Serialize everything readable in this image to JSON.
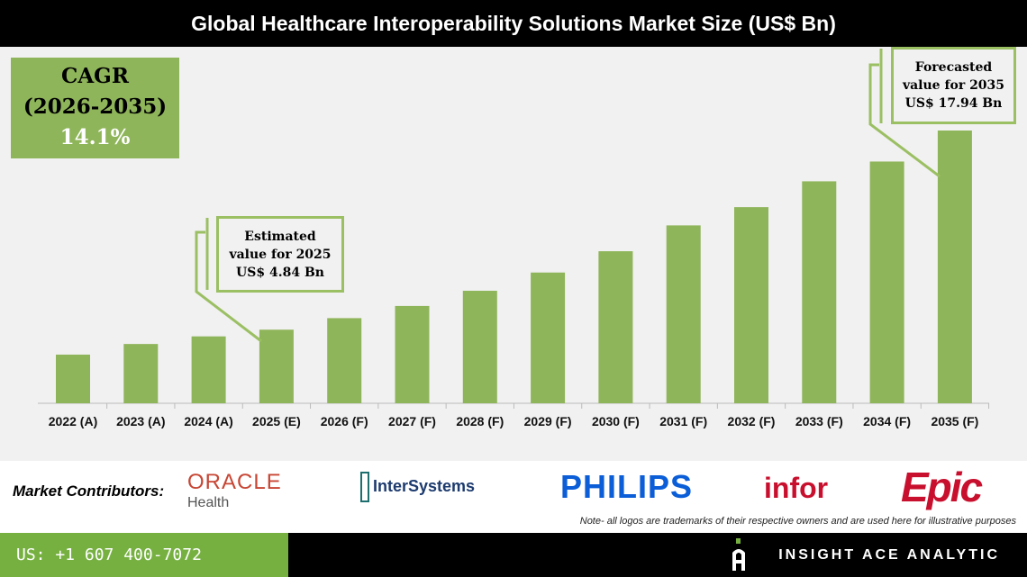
{
  "title": "Global Healthcare Interoperability Solutions Market Size (US$ Bn)",
  "cagr": {
    "label": "CAGR",
    "period": "(2026-2035)",
    "value": "14.1%"
  },
  "callouts": {
    "estimated": [
      "Estimated",
      "value for 2025",
      "US$ 4.84 Bn"
    ],
    "forecast": [
      "Forecasted",
      "value for 2035",
      "US$ 17.94 Bn"
    ]
  },
  "chart_data": {
    "type": "bar",
    "title": "Global Healthcare Interoperability Solutions Market Size (US$ Bn)",
    "categories": [
      "2022 (A)",
      "2023 (A)",
      "2024 (A)",
      "2025 (E)",
      "2026 (F)",
      "2027 (F)",
      "2028 (F)",
      "2029 (F)",
      "2030 (F)",
      "2031 (F)",
      "2032 (F)",
      "2033 (F)",
      "2034 (F)",
      "2035 (F)"
    ],
    "values": [
      3.2,
      3.9,
      4.4,
      4.84,
      5.6,
      6.4,
      7.4,
      8.6,
      10.0,
      11.7,
      12.9,
      14.6,
      15.9,
      17.94
    ],
    "ylim": [
      0,
      17.94
    ],
    "grid": false,
    "bar_color": "#8fb55a"
  },
  "contributors": {
    "label": "Market Contributors:",
    "logos": [
      {
        "name": "ORACLE",
        "sub": "Health",
        "color": "#c74634"
      },
      {
        "name": "InterSystems",
        "color": "#1d3b6e"
      },
      {
        "name": "PHILIPS",
        "color": "#0b5ed7"
      },
      {
        "name": "infor",
        "color": "#c8102e"
      },
      {
        "name": "Epic",
        "color": "#c8102e"
      }
    ],
    "note": "Note- all logos are trademarks of their respective owners and are used here for illustrative purposes"
  },
  "footer": {
    "phone": "US: +1 607 400-7072",
    "brand": "INSIGHT ACE ANALYTIC",
    "accent": "#76b041"
  }
}
